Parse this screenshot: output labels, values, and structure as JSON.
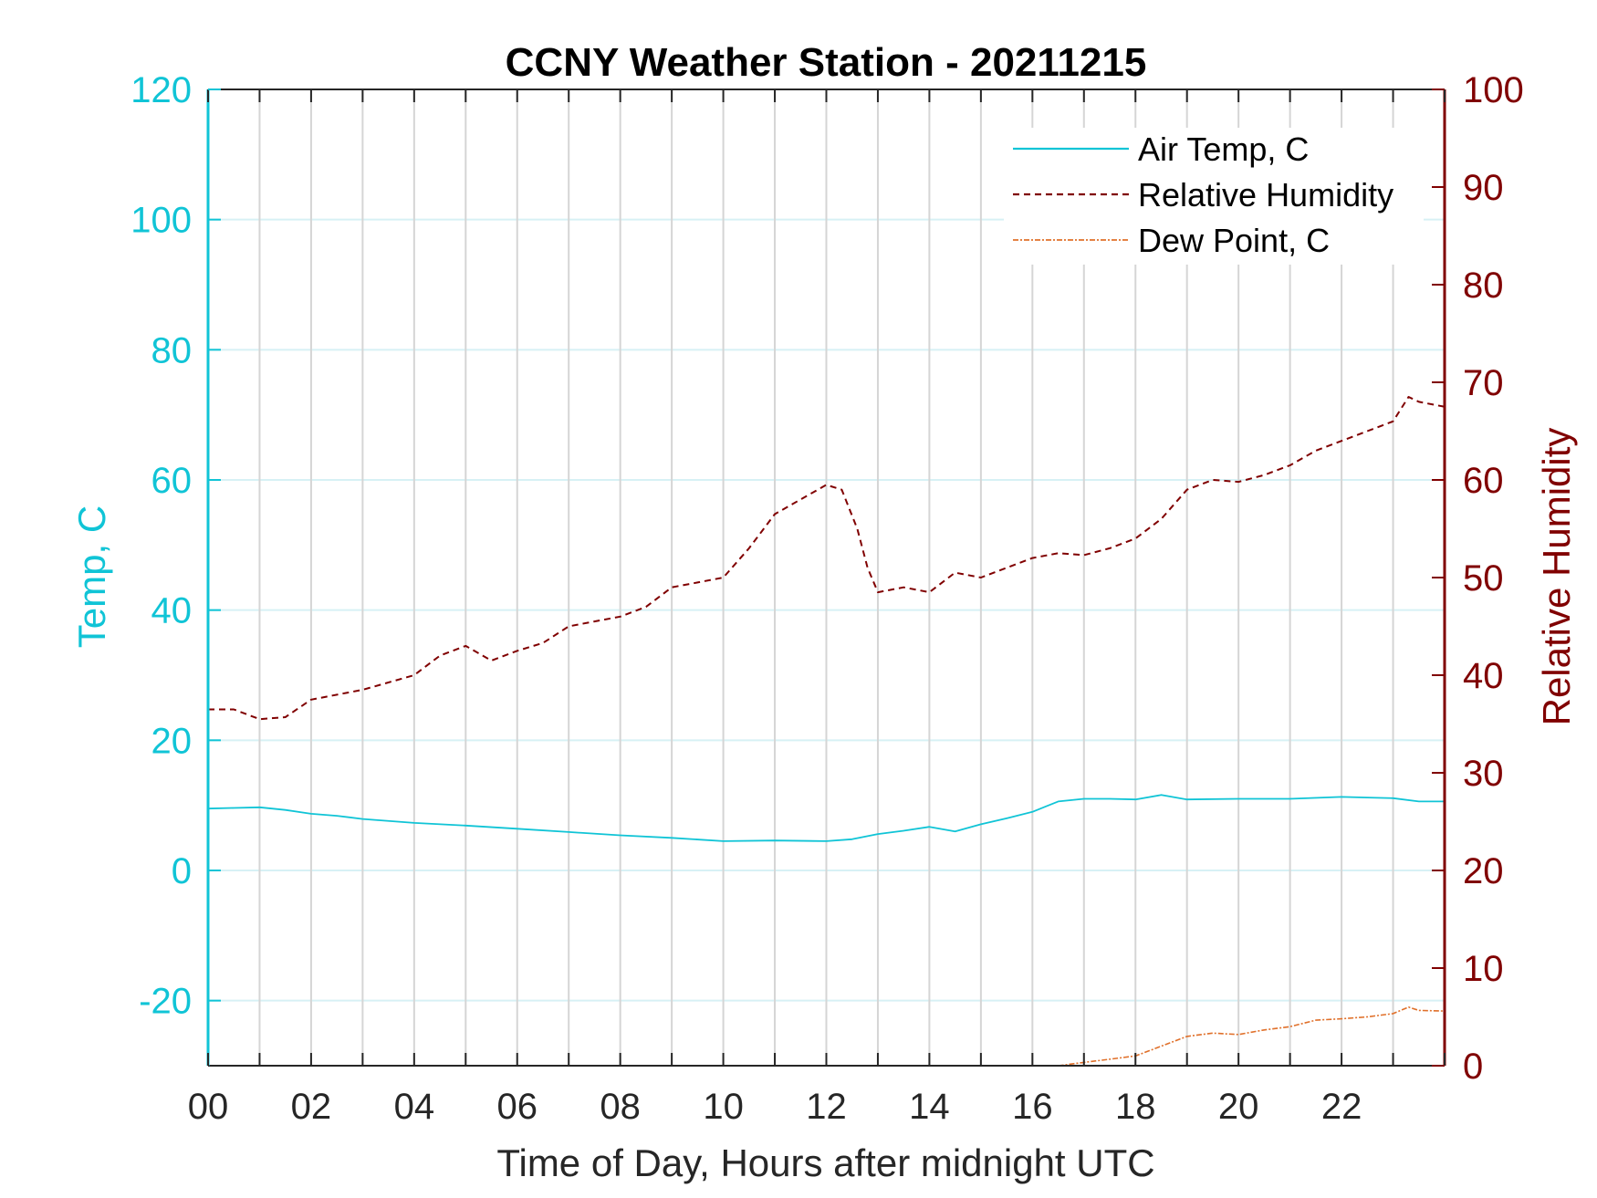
{
  "colors": {
    "air_temp": "#10c4d6",
    "humidity": "#800000",
    "dew_point": "#e0702a",
    "grid": "#d5d5d5",
    "grid_h": "#d7f1f5",
    "axis": "#262626"
  },
  "chart_data": {
    "type": "line",
    "title": "CCNY Weather Station - 20211215",
    "xlabel": "Time of Day, Hours after midnight UTC",
    "ylabel_left": "Temp, C",
    "ylabel_right": "Relative Humidity",
    "xlim": [
      0,
      24
    ],
    "ylim_left": [
      -30,
      120
    ],
    "ylim_right": [
      0,
      100
    ],
    "x_ticks": [
      0,
      2,
      4,
      6,
      8,
      10,
      12,
      14,
      16,
      18,
      20,
      22
    ],
    "x_tick_labels": [
      "00",
      "02",
      "04",
      "06",
      "08",
      "10",
      "12",
      "14",
      "16",
      "18",
      "20",
      "22"
    ],
    "y_left_ticks": [
      -20,
      0,
      20,
      40,
      60,
      80,
      100,
      120
    ],
    "y_left_tick_labels": [
      "-20",
      "0",
      "20",
      "40",
      "60",
      "80",
      "100",
      "120"
    ],
    "y_right_ticks": [
      0,
      10,
      20,
      30,
      40,
      50,
      60,
      70,
      80,
      90,
      100
    ],
    "y_right_tick_labels": [
      "0",
      "10",
      "20",
      "30",
      "40",
      "50",
      "60",
      "70",
      "80",
      "90",
      "100"
    ],
    "grid": true,
    "legend_position": "top-right",
    "series": [
      {
        "name": "Air Temp, C",
        "axis": "left",
        "style": "solid",
        "x": [
          0,
          0.5,
          1,
          1.5,
          2,
          2.5,
          3,
          4,
          5,
          6,
          7,
          8,
          9,
          10,
          11,
          12,
          12.5,
          13,
          13.5,
          14,
          14.5,
          15,
          15.5,
          16,
          16.5,
          17,
          17.5,
          18,
          18.5,
          19,
          20,
          21,
          22,
          22.5,
          23,
          23.5,
          24
        ],
        "values": [
          9.5,
          9.6,
          9.7,
          9.3,
          8.7,
          8.4,
          7.9,
          7.3,
          6.9,
          6.4,
          5.9,
          5.4,
          5.0,
          4.5,
          4.6,
          4.5,
          4.8,
          5.6,
          6.1,
          6.7,
          6.0,
          7.1,
          8.0,
          9.0,
          10.6,
          11.0,
          11.0,
          10.9,
          11.6,
          10.9,
          11.0,
          11.0,
          11.3,
          11.2,
          11.1,
          10.6,
          10.6
        ]
      },
      {
        "name": "Relative Humidity",
        "axis": "right",
        "style": "dashed",
        "x": [
          0,
          0.5,
          1,
          1.5,
          2,
          3,
          4,
          4.5,
          5,
          5.5,
          6,
          6.5,
          7,
          7.5,
          8,
          8.5,
          9,
          9.5,
          10,
          10.5,
          11,
          11.5,
          12,
          12.3,
          12.6,
          12.8,
          13,
          13.5,
          14,
          14.5,
          15,
          15.5,
          16,
          16.5,
          17,
          17.5,
          18,
          18.5,
          19,
          19.5,
          20,
          20.5,
          21,
          21.5,
          22,
          22.5,
          23,
          23.3,
          23.5,
          24
        ],
        "values": [
          36.5,
          36.5,
          35.5,
          35.7,
          37.5,
          38.5,
          40.0,
          42.0,
          43.0,
          41.5,
          42.5,
          43.3,
          45.0,
          45.5,
          46.0,
          47.0,
          49.0,
          49.5,
          50.0,
          53.0,
          56.5,
          58.0,
          59.5,
          59.0,
          55.0,
          51.0,
          48.5,
          49.0,
          48.5,
          50.5,
          50.0,
          51.0,
          52.0,
          52.5,
          52.3,
          53.0,
          54.0,
          56.0,
          59.0,
          60.0,
          59.8,
          60.5,
          61.5,
          63.0,
          64.0,
          65.0,
          66.0,
          68.5,
          68.0,
          67.5
        ]
      },
      {
        "name": "Dew Point, C",
        "axis": "left",
        "style": "dash-dot",
        "x": [
          16.5,
          17,
          17.5,
          18,
          18.5,
          19,
          19.5,
          20,
          20.5,
          21,
          21.5,
          22,
          22.5,
          23,
          23.3,
          23.5,
          24
        ],
        "values": [
          -30,
          -29.5,
          -29,
          -28.5,
          -27,
          -25.5,
          -25,
          -25.2,
          -24.5,
          -24,
          -23,
          -22.8,
          -22.5,
          -22.0,
          -21,
          -21.5,
          -21.6
        ]
      }
    ]
  }
}
